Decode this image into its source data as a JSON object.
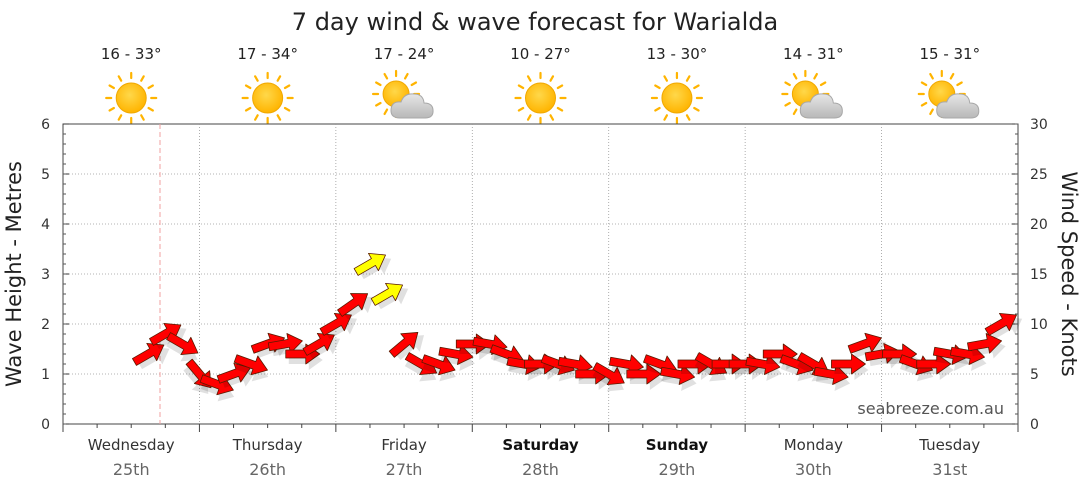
{
  "chart_data": {
    "type": "line",
    "title": "7 day wind & wave forecast for Warialda",
    "ylabel_left": "Wave Height - Metres",
    "ylabel_right": "Wind Speed - Knots",
    "ylim_left": [
      0,
      6
    ],
    "ylim_right": [
      0,
      30
    ],
    "yticks_left": [
      "0",
      "1",
      "2",
      "3",
      "4",
      "5",
      "6"
    ],
    "yticks_right": [
      "0",
      "5",
      "10",
      "15",
      "20",
      "25",
      "30"
    ],
    "grid": true,
    "credit": "seabreeze.com.au",
    "days": [
      {
        "name": "Wednesday",
        "date": "25th",
        "temp": "16 - 33°",
        "weather": "sun-icon",
        "weekend": false
      },
      {
        "name": "Thursday",
        "date": "26th",
        "temp": "17 - 34°",
        "weather": "sun-icon",
        "weekend": false
      },
      {
        "name": "Friday",
        "date": "27th",
        "temp": "17 - 24°",
        "weather": "partly-cloudy-icon",
        "weekend": false
      },
      {
        "name": "Saturday",
        "date": "28th",
        "temp": "10 - 27°",
        "weather": "sun-icon",
        "weekend": true
      },
      {
        "name": "Sunday",
        "date": "29th",
        "temp": "13 - 30°",
        "weather": "sun-icon",
        "weekend": true
      },
      {
        "name": "Monday",
        "date": "30th",
        "temp": "14 - 31°",
        "weather": "partly-cloudy-icon",
        "weekend": false
      },
      {
        "name": "Tuesday",
        "date": "31st",
        "temp": "15 - 31°",
        "weather": "partly-cloudy-icon",
        "weekend": false
      }
    ],
    "series": [
      {
        "name": "Wind Speed",
        "unit": "knots",
        "x_hours": [
          15,
          18,
          21,
          24,
          27,
          30,
          33,
          36,
          39,
          42,
          45,
          48,
          51,
          54,
          57,
          60,
          63,
          66,
          69,
          72,
          75,
          78,
          81,
          84,
          87,
          90,
          93,
          96,
          99,
          102,
          105,
          108,
          111,
          114,
          117,
          120,
          123,
          126,
          129,
          132,
          135,
          138,
          141,
          144,
          147,
          150,
          153,
          156,
          159,
          162,
          165
        ],
        "values": [
          7,
          9,
          8,
          5,
          4,
          5,
          6,
          8,
          8,
          7,
          8,
          10,
          12,
          16,
          13,
          8,
          6,
          6,
          7,
          8,
          8,
          7,
          6,
          6,
          6,
          6,
          5,
          5,
          6,
          5,
          6,
          5,
          6,
          6,
          6,
          6,
          6,
          7,
          6,
          6,
          5,
          6,
          8,
          7,
          7,
          6,
          6,
          7,
          7,
          8,
          10
        ],
        "colors": [
          "#ff0000",
          "#ff0000",
          "#ff0000",
          "#ff0000",
          "#ff0000",
          "#ff0000",
          "#ff0000",
          "#ff0000",
          "#ff0000",
          "#ff0000",
          "#ff0000",
          "#ff0000",
          "#ff0000",
          "#ffff00",
          "#ffff00",
          "#ff0000",
          "#ff0000",
          "#ff0000",
          "#ff0000",
          "#ff0000",
          "#ff0000",
          "#ff0000",
          "#ff0000",
          "#ff0000",
          "#ff0000",
          "#ff0000",
          "#ff0000",
          "#ff0000",
          "#ff0000",
          "#ff0000",
          "#ff0000",
          "#ff0000",
          "#ff0000",
          "#ff0000",
          "#ff0000",
          "#ff0000",
          "#ff0000",
          "#ff0000",
          "#ff0000",
          "#ff0000",
          "#ff0000",
          "#ff0000",
          "#ff0000",
          "#ff0000",
          "#ff0000",
          "#ff0000",
          "#ff0000",
          "#ff0000",
          "#ff0000",
          "#ff0000",
          "#ff0000"
        ],
        "direction_deg": [
          60,
          60,
          120,
          140,
          110,
          70,
          110,
          70,
          80,
          90,
          60,
          60,
          55,
          60,
          60,
          50,
          120,
          110,
          100,
          90,
          100,
          110,
          100,
          90,
          110,
          100,
          90,
          120,
          100,
          90,
          110,
          100,
          90,
          120,
          90,
          90,
          100,
          90,
          110,
          120,
          100,
          90,
          70,
          80,
          90,
          110,
          90,
          100,
          100,
          80,
          60
        ]
      }
    ]
  }
}
